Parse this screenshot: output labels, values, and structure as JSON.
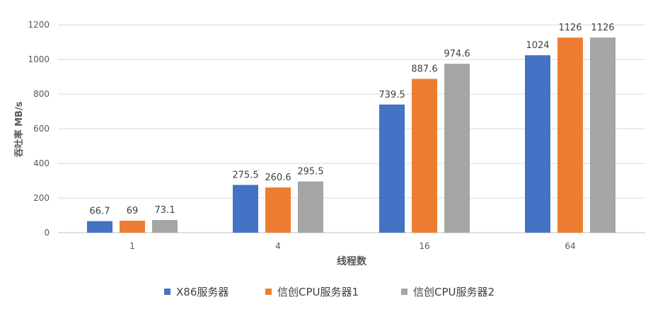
{
  "chart_data": {
    "type": "bar",
    "title": "",
    "xlabel": "线程数",
    "ylabel": "吞吐率 MB/s",
    "categories": [
      "1",
      "4",
      "16",
      "64"
    ],
    "ylim": [
      0,
      1200
    ],
    "yticks": [
      0,
      200,
      400,
      600,
      800,
      1000,
      1200
    ],
    "grid": true,
    "legend_position": "bottom",
    "series": [
      {
        "name": "X86服务器",
        "color": "#4472C4",
        "values": [
          66.7,
          275.5,
          739.5,
          1024
        ],
        "labels": [
          "66.7",
          "275.5",
          "739.5",
          "1024"
        ]
      },
      {
        "name": "信创CPU服务器1",
        "color": "#ED7D31",
        "values": [
          69,
          260.6,
          887.6,
          1126
        ],
        "labels": [
          "69",
          "260.6",
          "887.6",
          "1126"
        ]
      },
      {
        "name": "信创CPU服务器2",
        "color": "#A5A5A5",
        "values": [
          73.1,
          295.5,
          974.6,
          1126
        ],
        "labels": [
          "73.1",
          "295.5",
          "974.6",
          "1126"
        ]
      }
    ]
  }
}
